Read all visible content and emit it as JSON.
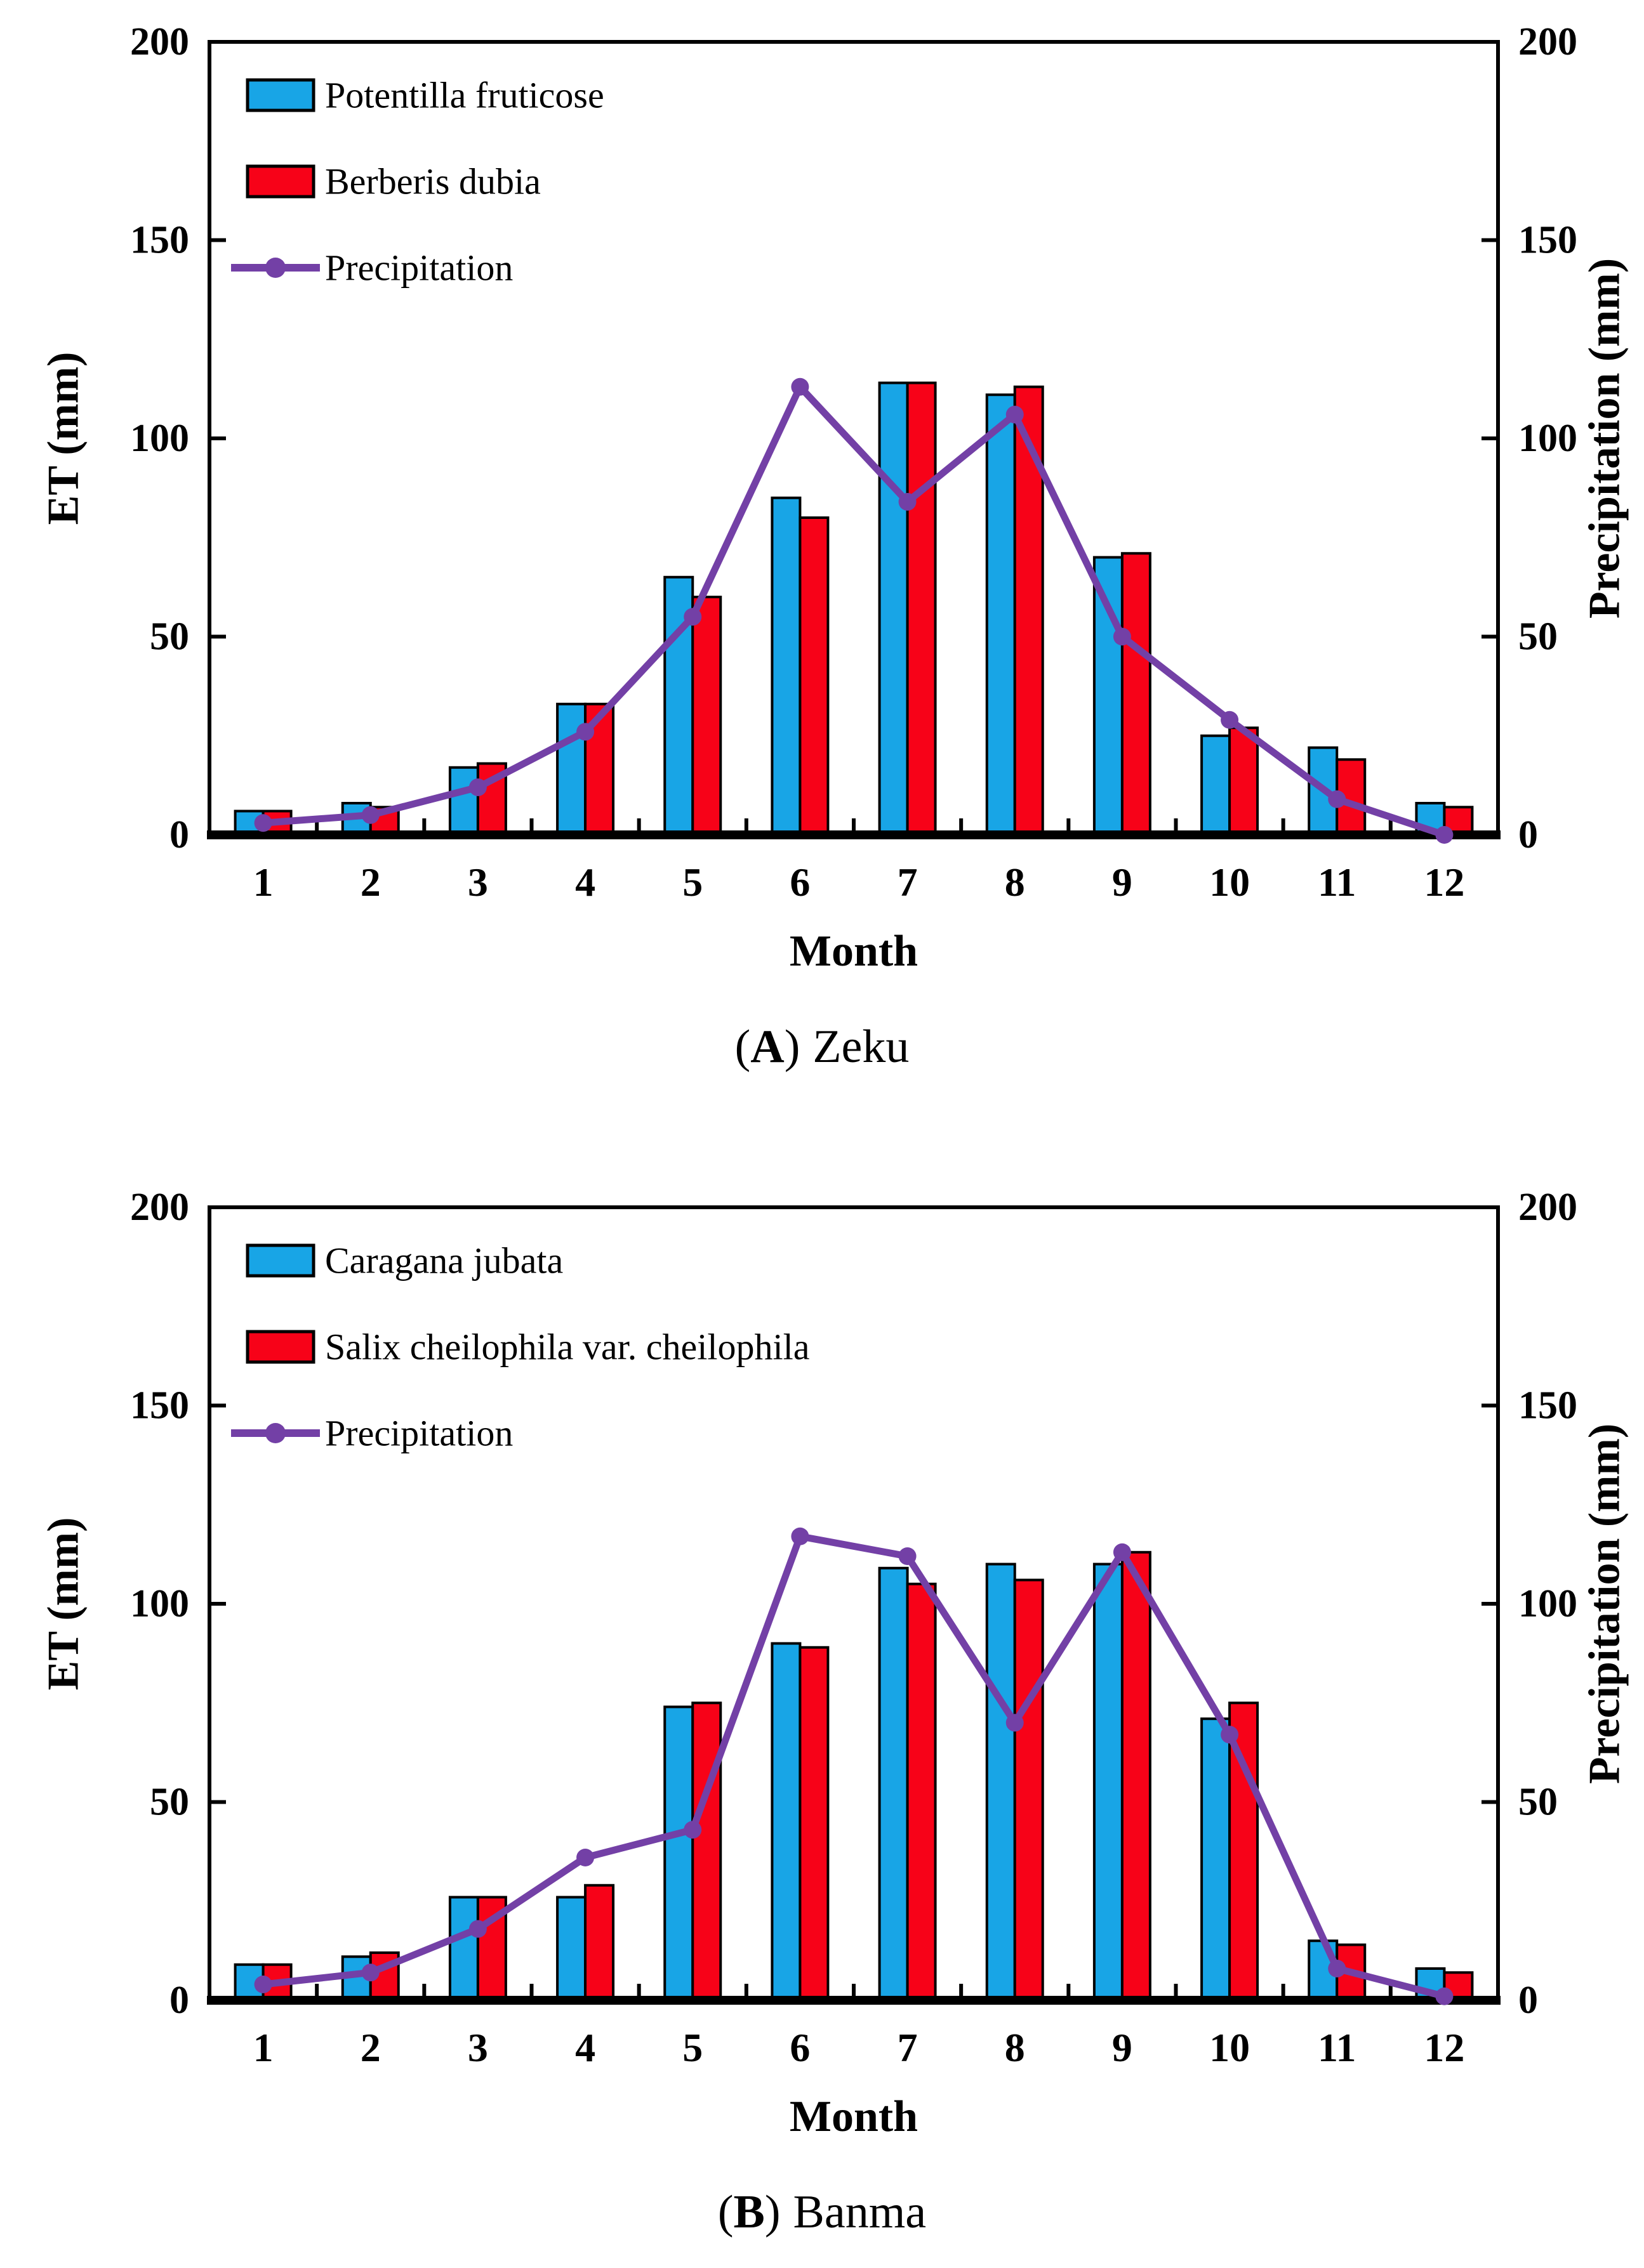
{
  "figure": {
    "background": "#ffffff",
    "axis_color": "#000000",
    "bar_outline_color": "#000000"
  },
  "chart_data": [
    {
      "type": "bar",
      "title": "(A) Zeku",
      "caption": {
        "open": "(",
        "letter": "A",
        "close": ")",
        "site": "Zeku"
      },
      "categories": [
        "1",
        "2",
        "3",
        "4",
        "5",
        "6",
        "7",
        "8",
        "9",
        "10",
        "11",
        "12"
      ],
      "xlabel": "Month",
      "ylabel_left": "ET (mm)",
      "ylabel_right": "Precipitation (mm)",
      "ylim": [
        0,
        200
      ],
      "yticks": [
        "0",
        "50",
        "100",
        "150",
        "200"
      ],
      "grid": false,
      "legend_position": "top-left",
      "series": [
        {
          "name": "Potentilla fruticose",
          "kind": "bar",
          "axis": "left",
          "color": "#18A5E6",
          "values": [
            6,
            8,
            17,
            33,
            65,
            85,
            114,
            111,
            70,
            25,
            22,
            8
          ]
        },
        {
          "name": "Berberis dubia",
          "kind": "bar",
          "axis": "left",
          "color": "#F70218",
          "values": [
            6,
            7,
            18,
            33,
            60,
            80,
            114,
            113,
            71,
            27,
            19,
            7
          ]
        },
        {
          "name": "Precipitation",
          "kind": "line",
          "axis": "right",
          "color": "#7340A6",
          "values": [
            3,
            5,
            12,
            26,
            55,
            113,
            84,
            106,
            50,
            29,
            9,
            0
          ]
        }
      ]
    },
    {
      "type": "bar",
      "title": "(B) Banma",
      "caption": {
        "open": "(",
        "letter": "B",
        "close": ")",
        "site": "Banma"
      },
      "categories": [
        "1",
        "2",
        "3",
        "4",
        "5",
        "6",
        "7",
        "8",
        "9",
        "10",
        "11",
        "12"
      ],
      "xlabel": "Month",
      "ylabel_left": "ET (mm)",
      "ylabel_right": "Precipitation (mm)",
      "ylim": [
        0,
        200
      ],
      "yticks": [
        "0",
        "50",
        "100",
        "150",
        "200"
      ],
      "grid": false,
      "legend_position": "top-left",
      "series": [
        {
          "name": "Caragana jubata",
          "kind": "bar",
          "axis": "left",
          "color": "#18A5E6",
          "values": [
            9,
            11,
            26,
            26,
            74,
            90,
            109,
            110,
            110,
            71,
            15,
            8
          ]
        },
        {
          "name": "Salix cheilophila var. cheilophila",
          "kind": "bar",
          "axis": "left",
          "color": "#F70218",
          "values": [
            9,
            12,
            26,
            29,
            75,
            89,
            105,
            106,
            113,
            75,
            14,
            7
          ]
        },
        {
          "name": "Precipitation",
          "kind": "line",
          "axis": "right",
          "color": "#7340A6",
          "values": [
            4,
            7,
            18,
            36,
            43,
            117,
            112,
            70,
            113,
            67,
            8,
            1
          ]
        }
      ]
    }
  ]
}
